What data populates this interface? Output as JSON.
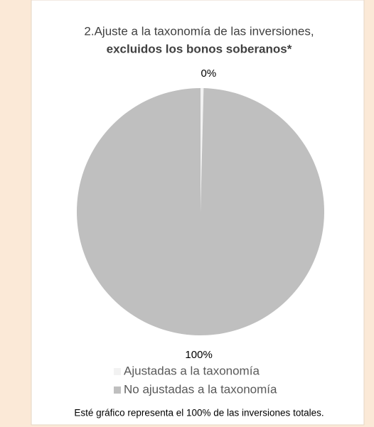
{
  "chart_data": {
    "type": "pie",
    "title_lines": [
      "2.Ajuste a la taxonomía de las inversiones,",
      "excluidos los bonos soberanos*"
    ],
    "categories": [
      "Ajustadas a la taxonomía",
      "No ajustadas a la taxonomía"
    ],
    "values": [
      0.4,
      99.6
    ],
    "value_labels": [
      "0%",
      "100%"
    ],
    "colors": [
      "#f2f2f2",
      "#bfbfbf"
    ],
    "note": "Esté gráfico representa el 100% de las inversiones totales."
  }
}
